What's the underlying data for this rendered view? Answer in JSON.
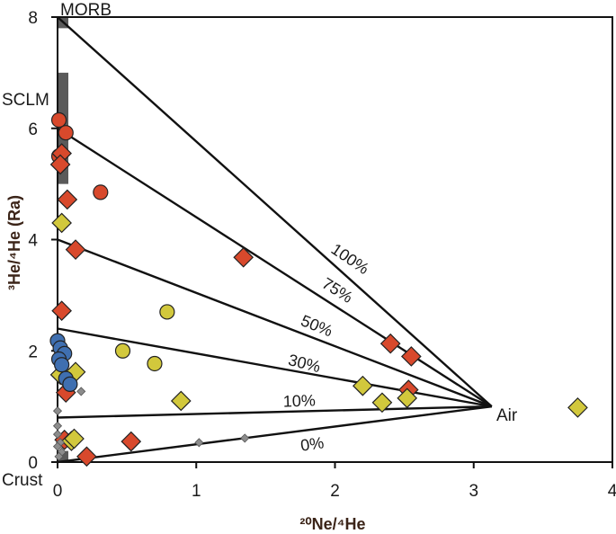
{
  "chart_data": {
    "type": "scatter",
    "title": "",
    "xlabel": "²⁰Ne/⁴He",
    "ylabel": "³He/⁴He (Ra)",
    "xlim": [
      0,
      4
    ],
    "ylim": [
      0,
      8
    ],
    "x_ticks": [
      "0",
      "1",
      "2",
      "3",
      "4"
    ],
    "y_ticks": [
      "0",
      "2",
      "4",
      "6",
      "8"
    ],
    "grid": false,
    "reference_bars": [
      {
        "name": "MORB",
        "y_range": [
          7.8,
          8.0
        ]
      },
      {
        "name": "SCLM",
        "y_range": [
          5.0,
          7.0
        ]
      },
      {
        "name": "Crust",
        "y_range": [
          0.0,
          0.2
        ]
      }
    ],
    "mixing_lines": [
      {
        "label": "100%",
        "from": [
          0,
          8.0
        ],
        "to": [
          3.13,
          1.0
        ]
      },
      {
        "label": "75%",
        "from": [
          0,
          6.0
        ],
        "to": [
          3.13,
          1.0
        ]
      },
      {
        "label": "50%",
        "from": [
          0,
          4.0
        ],
        "to": [
          3.13,
          1.0
        ]
      },
      {
        "label": "30%",
        "from": [
          0,
          2.4
        ],
        "to": [
          3.13,
          1.0
        ]
      },
      {
        "label": "10%",
        "from": [
          0,
          0.8
        ],
        "to": [
          3.13,
          1.0
        ]
      },
      {
        "label": "0%",
        "from": [
          0,
          0.0
        ],
        "to": [
          3.13,
          1.0
        ]
      }
    ],
    "air_point": {
      "label": "Air",
      "x": 3.13,
      "y": 1.0
    },
    "series": [
      {
        "name": "red-circles",
        "marker": "circle",
        "color": "#d8492c",
        "points": [
          [
            0.01,
            6.15
          ],
          [
            0.06,
            5.92
          ],
          [
            0.01,
            5.5
          ],
          [
            0.31,
            4.85
          ]
        ]
      },
      {
        "name": "red-diamonds",
        "marker": "diamond",
        "color": "#d8492c",
        "points": [
          [
            0.03,
            5.55
          ],
          [
            0.02,
            5.35
          ],
          [
            0.07,
            4.72
          ],
          [
            0.13,
            3.82
          ],
          [
            1.34,
            3.68
          ],
          [
            0.03,
            2.72
          ],
          [
            2.4,
            2.13
          ],
          [
            2.55,
            1.9
          ],
          [
            2.53,
            1.3
          ],
          [
            0.06,
            1.25
          ],
          [
            0.05,
            0.4
          ],
          [
            0.53,
            0.37
          ],
          [
            0.21,
            0.1
          ]
        ]
      },
      {
        "name": "yellow-circles",
        "marker": "circle",
        "color": "#d2c83c",
        "points": [
          [
            0.79,
            2.7
          ],
          [
            0.47,
            2.0
          ],
          [
            0.7,
            1.77
          ]
        ]
      },
      {
        "name": "yellow-diamonds",
        "marker": "diamond",
        "color": "#d2c83c",
        "points": [
          [
            0.03,
            4.3
          ],
          [
            0.02,
            1.57
          ],
          [
            0.13,
            1.62
          ],
          [
            2.2,
            1.37
          ],
          [
            2.52,
            1.15
          ],
          [
            2.34,
            1.07
          ],
          [
            0.89,
            1.1
          ],
          [
            3.75,
            0.98
          ],
          [
            0.1,
            0.38
          ],
          [
            0.12,
            0.42
          ]
        ]
      },
      {
        "name": "blue-circles",
        "marker": "circle",
        "color": "#3f6fb0",
        "points": [
          [
            0.0,
            2.18
          ],
          [
            0.02,
            2.05
          ],
          [
            0.05,
            1.95
          ],
          [
            0.01,
            1.85
          ],
          [
            0.03,
            1.75
          ],
          [
            0.06,
            1.5
          ],
          [
            0.09,
            1.4
          ]
        ]
      },
      {
        "name": "grey-small-diamonds",
        "marker": "small-diamond",
        "color": "#8c8c8c",
        "points": [
          [
            1.02,
            0.35
          ],
          [
            1.35,
            0.43
          ],
          [
            0.0,
            0.92
          ],
          [
            0.0,
            0.65
          ],
          [
            0.0,
            0.5
          ],
          [
            0.02,
            0.35
          ],
          [
            0.0,
            0.28
          ],
          [
            0.03,
            0.18
          ],
          [
            0.01,
            0.1
          ],
          [
            0.17,
            1.27
          ]
        ]
      }
    ]
  }
}
